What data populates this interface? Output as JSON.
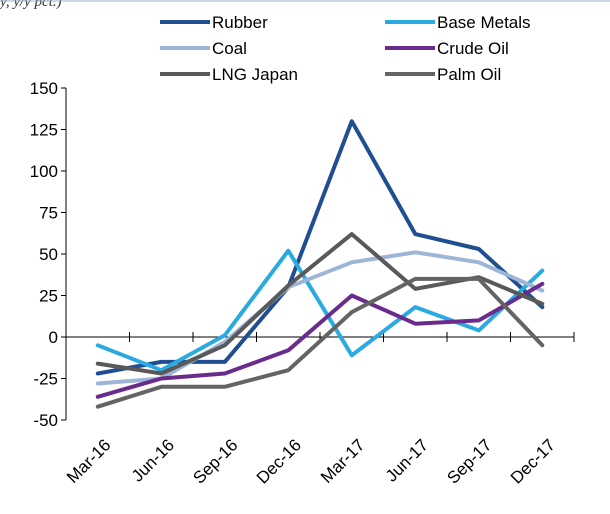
{
  "chart_data": {
    "type": "line",
    "title": "",
    "subtitle": "(g-o-y, y/y pct.)",
    "xlabel": "",
    "ylabel": "",
    "categories": [
      "Mar-16",
      "Jun-16",
      "Sep-16",
      "Dec-16",
      "Mar-17",
      "Jun-17",
      "Sep-17",
      "Dec-17"
    ],
    "ylim": [
      -50,
      150
    ],
    "yticks": [
      -50,
      -25,
      0,
      25,
      50,
      75,
      100,
      125,
      150
    ],
    "grid": false,
    "legend_position": "top",
    "series": [
      {
        "name": "Rubber",
        "color": "#1f4e91",
        "values": [
          -22,
          -15,
          -15,
          30,
          130,
          62,
          53,
          18
        ]
      },
      {
        "name": "Base Metals",
        "color": "#2aaae1",
        "values": [
          -5,
          -20,
          1,
          52,
          -11,
          18,
          4,
          40
        ]
      },
      {
        "name": "Coal",
        "color": "#9db5d6",
        "values": [
          -28,
          -25,
          -3,
          30,
          45,
          51,
          45,
          28
        ]
      },
      {
        "name": "Crude Oil",
        "color": "#6a2c8c",
        "values": [
          -36,
          -25,
          -22,
          -8,
          25,
          8,
          10,
          32
        ]
      },
      {
        "name": "LNG Japan",
        "color": "#595959",
        "values": [
          -16,
          -22,
          -5,
          31,
          62,
          29,
          36,
          20
        ]
      },
      {
        "name": "Palm Oil",
        "color": "#646464",
        "values": [
          -42,
          -30,
          -30,
          -20,
          15,
          35,
          35,
          -5
        ]
      }
    ]
  }
}
